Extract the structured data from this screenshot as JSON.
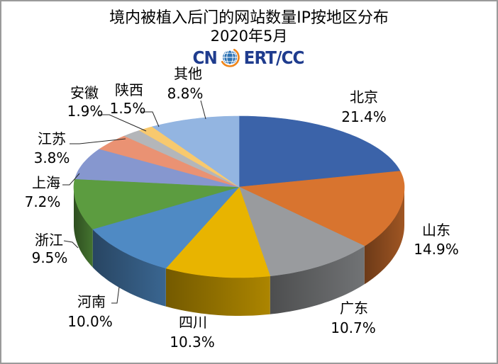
{
  "frame": {
    "border_color": "#9a9a9a",
    "background": "#ffffff"
  },
  "logo": {
    "left": "CN",
    "right": "ERT/CC",
    "text_color": "#1f3c8e",
    "globe_color": "#2c72b4",
    "globe_grid_color": "#ffffff",
    "swoosh_color": "#f08519"
  },
  "chart_data": {
    "type": "pie",
    "projection": "3d",
    "title": "境内被植入后门的网站数量IP按地区分布",
    "subtitle": "2020年5月",
    "start_angle_deg": 0,
    "direction": "clockwise",
    "label_format": "category + percent",
    "leader_line_color": "#262626",
    "slices": [
      {
        "label": "北京",
        "value": 21.4,
        "color": "#3b63a9"
      },
      {
        "label": "山东",
        "value": 14.9,
        "color": "#d8742f"
      },
      {
        "label": "广东",
        "value": 10.7,
        "color": "#999b9e"
      },
      {
        "label": "四川",
        "value": 10.3,
        "color": "#e8b400"
      },
      {
        "label": "河南",
        "value": 10.0,
        "color": "#4f8ac4"
      },
      {
        "label": "浙江",
        "value": 9.5,
        "color": "#5c9c40"
      },
      {
        "label": "上海",
        "value": 7.2,
        "color": "#8697cf"
      },
      {
        "label": "江苏",
        "value": 3.8,
        "color": "#ea9273"
      },
      {
        "label": "安徽",
        "value": 1.9,
        "color": "#b4b6b9"
      },
      {
        "label": "陕西",
        "value": 1.5,
        "color": "#f8c96e"
      },
      {
        "label": "其他",
        "value": 8.8,
        "color": "#93b5e1"
      }
    ]
  }
}
